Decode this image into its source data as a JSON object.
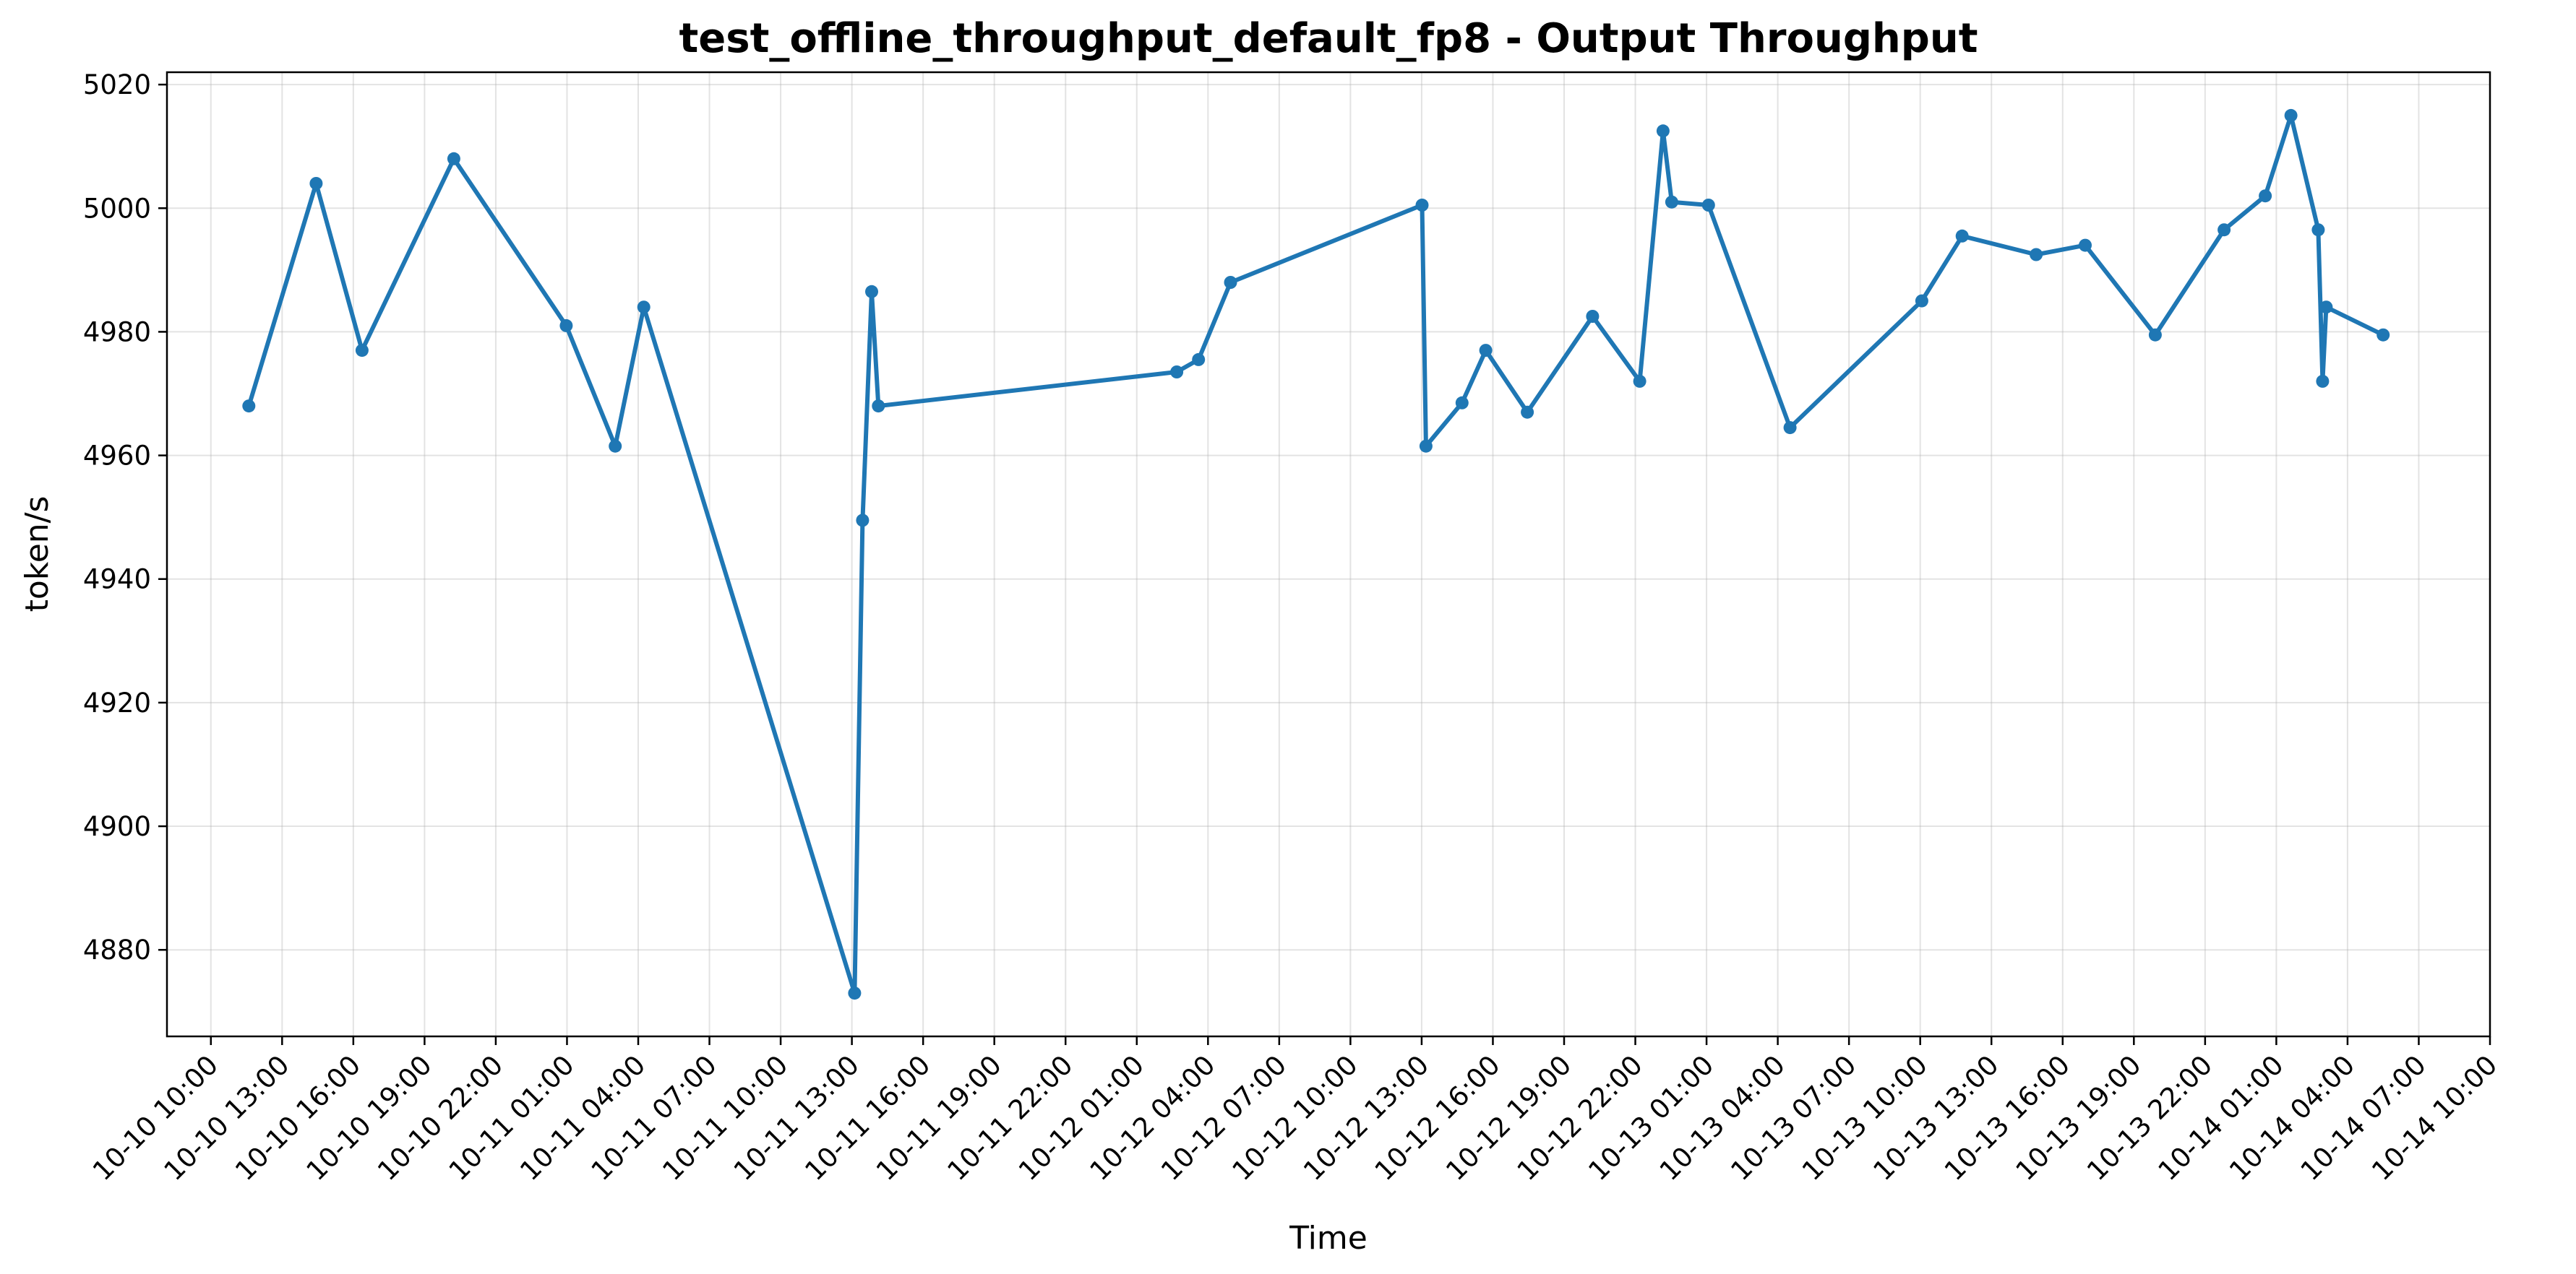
{
  "chart_data": {
    "type": "line",
    "title": "test_offline_throughput_default_fp8 - Output Throughput",
    "xlabel": "Time",
    "ylabel": "token/s",
    "x_range": [
      "2024-10-10 08:09",
      "2024-10-14 10:00"
    ],
    "ylim": [
      4866,
      5022
    ],
    "grid": true,
    "legend": "none",
    "color": "#1f77b4",
    "x_ticks": [
      "10-10 10:00",
      "10-10 13:00",
      "10-10 16:00",
      "10-10 19:00",
      "10-10 22:00",
      "10-11 01:00",
      "10-11 04:00",
      "10-11 07:00",
      "10-11 10:00",
      "10-11 13:00",
      "10-11 16:00",
      "10-11 19:00",
      "10-11 22:00",
      "10-12 01:00",
      "10-12 04:00",
      "10-12 07:00",
      "10-12 10:00",
      "10-12 13:00",
      "10-12 16:00",
      "10-12 19:00",
      "10-12 22:00",
      "10-13 01:00",
      "10-13 04:00",
      "10-13 07:00",
      "10-13 10:00",
      "10-13 13:00",
      "10-13 16:00",
      "10-13 19:00",
      "10-13 22:00",
      "10-14 01:00",
      "10-14 04:00",
      "10-14 07:00",
      "10-14 10:00"
    ],
    "x_tick_values": [
      "2024-10-10 10:00",
      "2024-10-10 13:00",
      "2024-10-10 16:00",
      "2024-10-10 19:00",
      "2024-10-10 22:00",
      "2024-10-11 01:00",
      "2024-10-11 04:00",
      "2024-10-11 07:00",
      "2024-10-11 10:00",
      "2024-10-11 13:00",
      "2024-10-11 16:00",
      "2024-10-11 19:00",
      "2024-10-11 22:00",
      "2024-10-12 01:00",
      "2024-10-12 04:00",
      "2024-10-12 07:00",
      "2024-10-12 10:00",
      "2024-10-12 13:00",
      "2024-10-12 16:00",
      "2024-10-12 19:00",
      "2024-10-12 22:00",
      "2024-10-13 01:00",
      "2024-10-13 04:00",
      "2024-10-13 07:00",
      "2024-10-13 10:00",
      "2024-10-13 13:00",
      "2024-10-13 16:00",
      "2024-10-13 19:00",
      "2024-10-13 22:00",
      "2024-10-14 01:00",
      "2024-10-14 04:00",
      "2024-10-14 07:00",
      "2024-10-14 10:00"
    ],
    "y_ticks": [
      4880,
      4900,
      4920,
      4940,
      4960,
      4980,
      5000,
      5020
    ],
    "series": [
      {
        "x": [
          "2024-10-10 11:36",
          "2024-10-10 14:26",
          "2024-10-10 16:22",
          "2024-10-10 20:14",
          "2024-10-11 00:58",
          "2024-10-11 03:02",
          "2024-10-11 04:14",
          "2024-10-11 13:07",
          "2024-10-11 13:27",
          "2024-10-11 13:50",
          "2024-10-11 14:07",
          "2024-10-12 02:41",
          "2024-10-12 03:36",
          "2024-10-12 04:57",
          "2024-10-12 13:01",
          "2024-10-12 13:11",
          "2024-10-12 14:42",
          "2024-10-12 15:42",
          "2024-10-12 17:27",
          "2024-10-12 20:12",
          "2024-10-12 22:11",
          "2024-10-12 23:10",
          "2024-10-12 23:32",
          "2024-10-13 01:05",
          "2024-10-13 04:31",
          "2024-10-13 10:04",
          "2024-10-13 11:46",
          "2024-10-13 14:53",
          "2024-10-13 16:57",
          "2024-10-13 19:54",
          "2024-10-13 22:48",
          "2024-10-14 00:32",
          "2024-10-14 01:37",
          "2024-10-14 02:46",
          "2024-10-14 02:57",
          "2024-10-14 03:06",
          "2024-10-14 05:30"
        ],
        "values": [
          4968,
          5004,
          4977,
          5008,
          4981,
          4961.5,
          4984,
          4873,
          4949.5,
          4986.5,
          4968,
          4973.5,
          4975.5,
          4988,
          5000.5,
          4961.5,
          4968.5,
          4977,
          4967,
          4982.5,
          4972,
          5012.5,
          5001,
          5000.5,
          4964.5,
          4985,
          4995.5,
          4992.5,
          4994,
          4979.5,
          4996.5,
          5002,
          5015,
          4996.5,
          4972,
          4984,
          4979.5
        ]
      }
    ]
  }
}
